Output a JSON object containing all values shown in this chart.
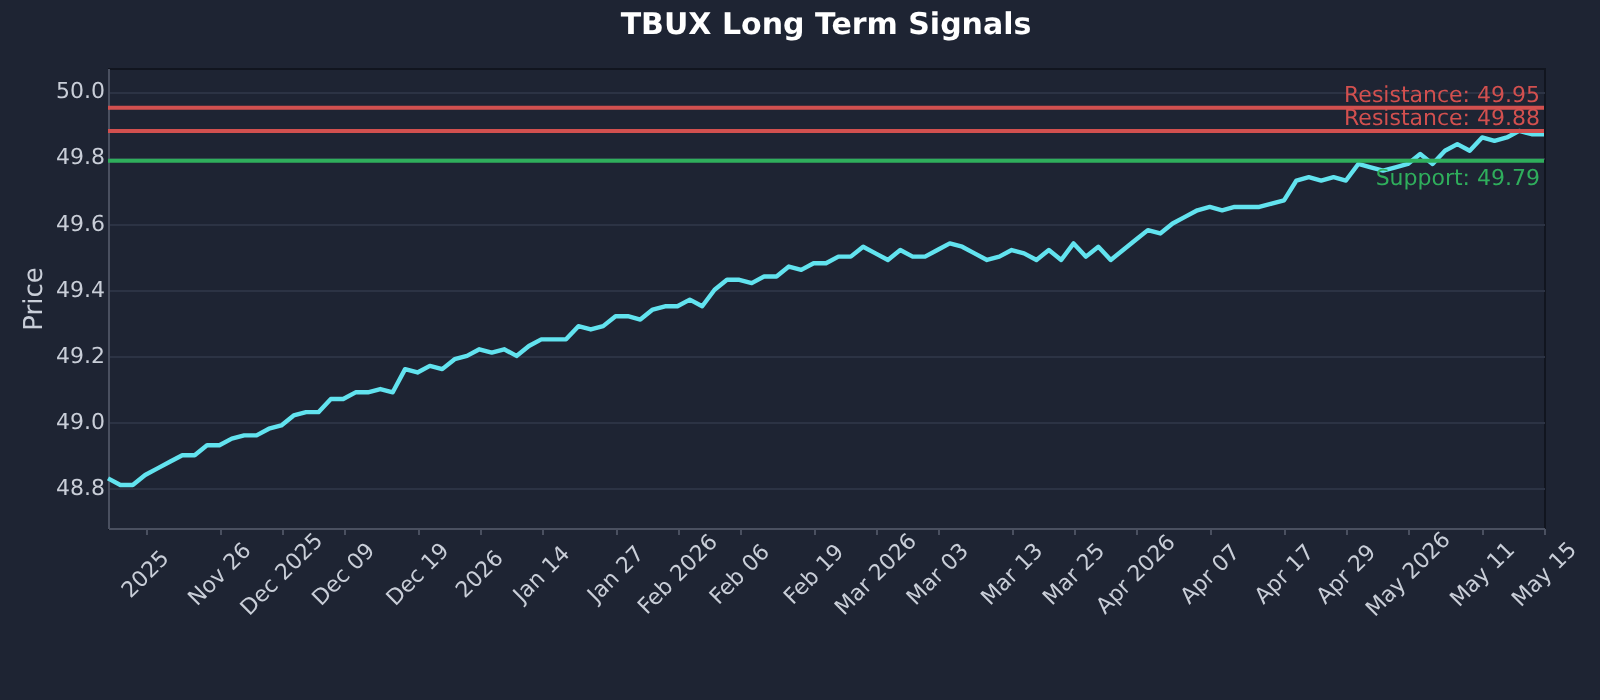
{
  "chart_data": {
    "type": "line",
    "title": "TBUX Long Term Signals",
    "ylabel": "Price",
    "categories": [
      null,
      null,
      null,
      "2025",
      null,
      null,
      null,
      null,
      null,
      "Nov 26",
      null,
      null,
      null,
      null,
      "Dec 2025",
      null,
      null,
      null,
      null,
      "Dec 09",
      null,
      null,
      null,
      null,
      null,
      "Dec 19",
      null,
      null,
      null,
      null,
      "2026",
      null,
      null,
      null,
      null,
      "Jan 14",
      null,
      null,
      null,
      null,
      null,
      "Jan 27",
      null,
      null,
      null,
      null,
      "Feb 2026",
      null,
      null,
      null,
      null,
      "Feb 06",
      null,
      null,
      null,
      null,
      null,
      "Feb 19",
      null,
      null,
      null,
      null,
      "Mar 2026",
      null,
      null,
      null,
      null,
      "Mar 03",
      null,
      null,
      null,
      null,
      null,
      "Mar 13",
      null,
      null,
      null,
      null,
      "Mar 25",
      null,
      null,
      null,
      null,
      "Apr 2026",
      null,
      null,
      null,
      null,
      null,
      "Apr 07",
      null,
      null,
      null,
      null,
      null,
      "Apr 17",
      null,
      null,
      null,
      null,
      "Apr 29",
      null,
      null,
      null,
      null,
      "May 2026",
      null,
      null,
      null,
      null,
      null,
      "May 11",
      null,
      null,
      null,
      null,
      "May 15"
    ],
    "series": [
      {
        "color": "#62e3ef",
        "values": [
          48.83,
          48.81,
          48.81,
          48.84,
          48.86,
          48.88,
          48.9,
          48.9,
          48.93,
          48.93,
          48.95,
          48.96,
          48.96,
          48.98,
          48.99,
          49.02,
          49.03,
          49.03,
          49.07,
          49.07,
          49.09,
          49.09,
          49.1,
          49.09,
          49.16,
          49.15,
          49.17,
          49.16,
          49.19,
          49.2,
          49.22,
          49.21,
          49.22,
          49.2,
          49.23,
          49.25,
          49.25,
          49.25,
          49.29,
          49.28,
          49.29,
          49.32,
          49.32,
          49.31,
          49.34,
          49.35,
          49.35,
          49.37,
          49.35,
          49.4,
          49.43,
          49.43,
          49.42,
          49.44,
          49.44,
          49.47,
          49.46,
          49.48,
          49.48,
          49.5,
          49.5,
          49.53,
          49.51,
          49.49,
          49.52,
          49.5,
          49.5,
          49.52,
          49.54,
          49.53,
          49.51,
          49.49,
          49.5,
          49.52,
          49.51,
          49.49,
          49.52,
          49.49,
          49.54,
          49.5,
          49.53,
          49.49,
          49.52,
          49.55,
          49.58,
          49.57,
          49.6,
          49.62,
          49.64,
          49.65,
          49.64,
          49.65,
          49.65,
          49.65,
          49.66,
          49.67,
          49.73,
          49.74,
          49.73,
          49.74,
          49.73,
          49.78,
          49.77,
          49.76,
          49.77,
          49.78,
          49.81,
          49.78,
          49.82,
          49.84,
          49.82,
          49.86,
          49.85,
          49.86,
          49.88,
          49.87,
          49.87
        ]
      }
    ],
    "ylim": [
      48.68,
      50.07
    ],
    "yticks": [
      48.8,
      {
        "value": 49,
        "label": "49.0"
      },
      49.2,
      49.4,
      49.6,
      49.8,
      {
        "value": 50,
        "label": "50.0"
      }
    ],
    "grid": "y",
    "ref_lines": [
      {
        "axis": "y",
        "value": 49.95,
        "label": "Resistance: 49.95",
        "color": "#d2504f"
      },
      {
        "axis": "y",
        "value": 49.88,
        "label": "Resistance: 49.88",
        "color": "#d2504f"
      },
      {
        "axis": "y",
        "value": 49.79,
        "label": "Support: 49.79",
        "color": "#2fae5c"
      }
    ]
  }
}
